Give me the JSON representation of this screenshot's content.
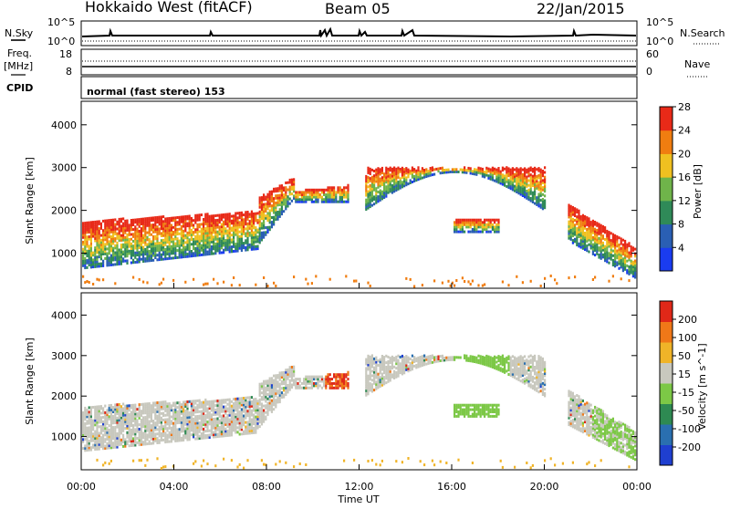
{
  "header": {
    "radar": "Hokkaido West (fitACF)",
    "beam": "Beam 05",
    "date": "22/Jan/2015"
  },
  "noise_panel": {
    "left_label": "N.Sky",
    "right_label": "N.Search",
    "left_ticks": [
      "10^5",
      "10^0"
    ],
    "right_ticks": [
      "10^5",
      "10^0"
    ]
  },
  "freq_panel": {
    "left_label_1": "Freq.",
    "left_label_2": "[MHz]",
    "left_ticks": [
      "18",
      "8"
    ],
    "right_label": "Nave",
    "right_ticks": [
      "60",
      "0"
    ],
    "cpid_label": "CPID"
  },
  "mode_text": "normal (fast stereo) 153",
  "chart_data": [
    {
      "type": "heatmap",
      "name": "power",
      "ylabel": "Slant Range [km]",
      "ylim": [
        180,
        4550
      ],
      "yticks": [
        1000,
        2000,
        3000,
        4000
      ],
      "colorbar": {
        "label": "Power [dB]",
        "ticks": [
          "4",
          "8",
          "12",
          "16",
          "20",
          "24",
          "28"
        ],
        "colors": [
          "#1a3cf0",
          "#2a5fb4",
          "#2f8a58",
          "#6fb44a",
          "#f0c020",
          "#f07d10",
          "#e82a18"
        ]
      }
    },
    {
      "type": "heatmap",
      "name": "velocity",
      "ylabel": "Slant Range [km]",
      "ylim": [
        180,
        4550
      ],
      "yticks": [
        1000,
        2000,
        3000,
        4000
      ],
      "colorbar": {
        "label": "Velocity [m s^-1]",
        "ticks": [
          "200",
          "100",
          "50",
          "15",
          "-15",
          "-50",
          "-100",
          "-200"
        ],
        "colors": [
          "#1f3fd0",
          "#2a6fb0",
          "#2e8a52",
          "#7cc846",
          "#c8c8be",
          "#f0b428",
          "#f07818",
          "#e02818"
        ]
      }
    }
  ],
  "x_axis": {
    "label": "Time UT",
    "ticks": [
      "00:00",
      "04:00",
      "08:00",
      "12:00",
      "16:00",
      "20:00",
      "00:00"
    ]
  }
}
